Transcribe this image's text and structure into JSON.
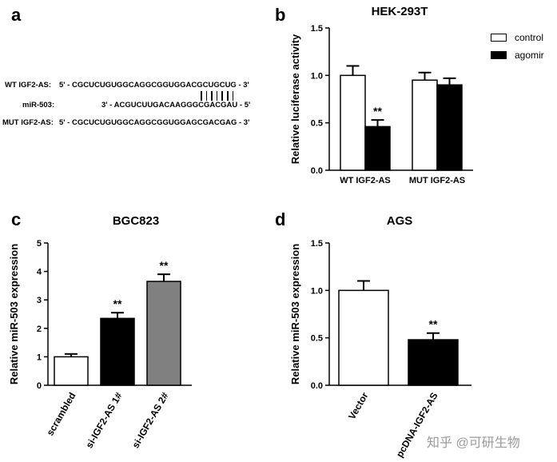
{
  "panels": {
    "a": "a",
    "b": "b",
    "c": "c",
    "d": "d"
  },
  "sequences": {
    "rows": [
      {
        "label": "WT IGF2-AS:",
        "seq": "5' - CGCUCUGUGGCAGGCGGUGGACGCUGCUG - 3'"
      },
      {
        "label": "miR-503:",
        "seq": "3' - ACGUCUUGACAAGGGCGACGAU - 5'"
      },
      {
        "label": "MUT IGF2-AS:",
        "seq": "5' - CGCUCUGUGGCAGGCGGUGGAGCGACGAG - 3'"
      }
    ],
    "pairing_marks": 7
  },
  "watermark": "知乎 @可研生物",
  "chart_data": [
    {
      "id": "b",
      "type": "bar",
      "title": "HEK-293T",
      "ylabel": "Relative luciferase activity",
      "xlabel": "",
      "ylim": [
        0,
        1.5
      ],
      "yticks": [
        "0.0",
        "0.5",
        "1.0",
        "1.5"
      ],
      "categories": [
        "WT IGF2-AS",
        "MUT IGF2-AS"
      ],
      "series": [
        {
          "name": "control",
          "color": "#ffffff",
          "values": [
            1.0,
            0.95
          ],
          "errors": [
            0.1,
            0.08
          ]
        },
        {
          "name": "agomir",
          "color": "#000000",
          "values": [
            0.46,
            0.9
          ],
          "errors": [
            0.07,
            0.07
          ]
        }
      ],
      "annotations": [
        {
          "series": 1,
          "category": 0,
          "text": "**"
        }
      ],
      "legend": "top-right",
      "grid": false
    },
    {
      "id": "c",
      "type": "bar",
      "title": "BGC823",
      "ylabel": "Relative miR-503 expression",
      "xlabel": "",
      "ylim": [
        0,
        5
      ],
      "yticks": [
        "0",
        "1",
        "2",
        "3",
        "4",
        "5"
      ],
      "categories": [
        "scrambled",
        "si-IGF2-AS 1#",
        "si-IGF2-AS 2#"
      ],
      "values": [
        1.0,
        2.35,
        3.65
      ],
      "errors": [
        0.1,
        0.2,
        0.25
      ],
      "colors": [
        "#ffffff",
        "#000000",
        "#808080"
      ],
      "annotations": [
        "",
        "**",
        "**"
      ],
      "grid": false
    },
    {
      "id": "d",
      "type": "bar",
      "title": "AGS",
      "ylabel": "Relative miR-503 expression",
      "xlabel": "",
      "ylim": [
        0,
        1.5
      ],
      "yticks": [
        "0.0",
        "0.5",
        "1.0",
        "1.5"
      ],
      "categories": [
        "Vector",
        "pcDNA-IGF2-AS"
      ],
      "values": [
        1.0,
        0.48
      ],
      "errors": [
        0.1,
        0.07
      ],
      "colors": [
        "#ffffff",
        "#000000"
      ],
      "annotations": [
        "",
        "**"
      ],
      "grid": false
    }
  ]
}
